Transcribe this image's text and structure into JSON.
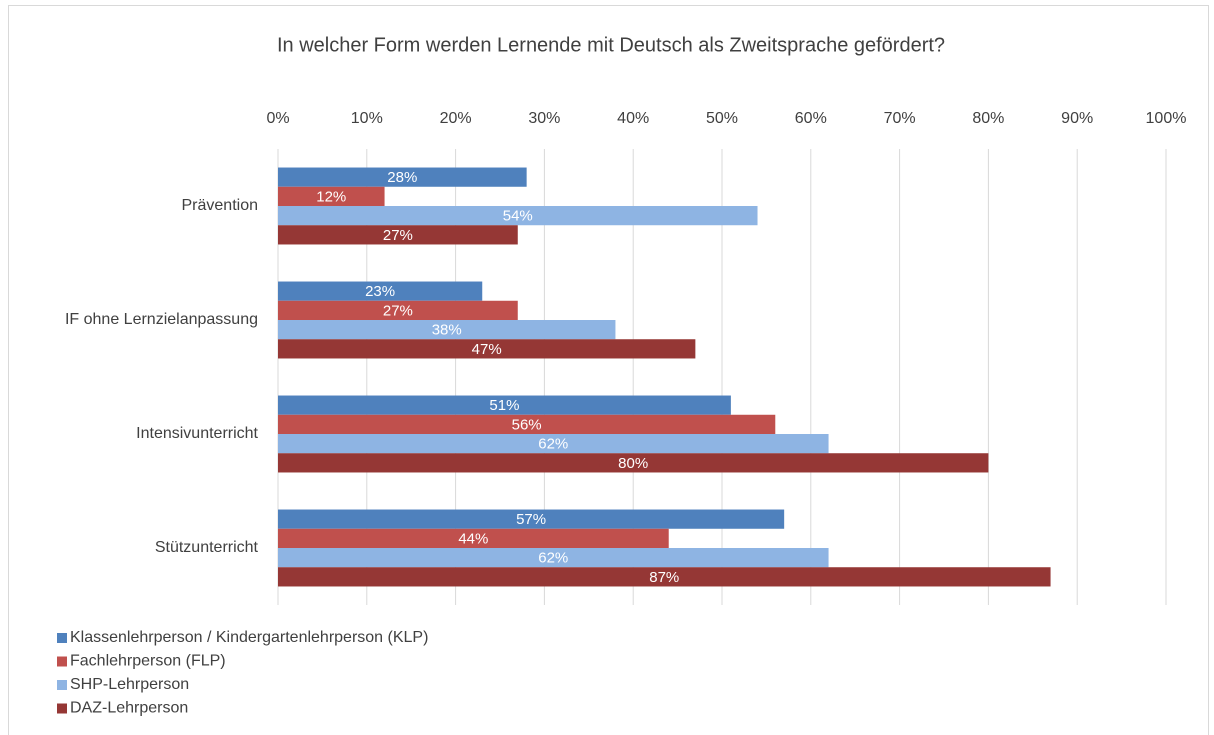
{
  "chart_data": {
    "type": "bar",
    "orientation": "horizontal",
    "title": "In welcher Form werden Lernende mit Deutsch als Zweitsprache gefördert?",
    "categories": [
      "Prävention",
      "IF ohne Lernzielanpassung",
      "Intensivunterricht",
      "Stützunterricht"
    ],
    "series": [
      {
        "name": "Klassenlehrperson / Kindergartenlehrperson (KLP)",
        "color": "#4f81bd",
        "values": [
          28,
          23,
          51,
          57
        ],
        "value_labels": [
          "28%",
          "23%",
          "51%",
          "57%"
        ]
      },
      {
        "name": "Fachlehrperson (FLP)",
        "color": "#c0504d",
        "values": [
          12,
          27,
          56,
          44
        ],
        "value_labels": [
          "12%",
          "27%",
          "56%",
          "44%"
        ]
      },
      {
        "name": "SHP-Lehrperson",
        "color": "#8eb4e3",
        "values": [
          54,
          38,
          62,
          62
        ],
        "value_labels": [
          "54%",
          "38%",
          "62%",
          "62%"
        ]
      },
      {
        "name": "DAZ-Lehrperson",
        "color": "#953735",
        "values": [
          27,
          47,
          80,
          87
        ],
        "value_labels": [
          "27%",
          "47%",
          "80%",
          "87%"
        ]
      }
    ],
    "xlim": [
      0,
      100
    ],
    "xticks": [
      {
        "value": 0,
        "label": "0%"
      },
      {
        "value": 10,
        "label": "10%"
      },
      {
        "value": 20,
        "label": "20%"
      },
      {
        "value": 30,
        "label": "30%"
      },
      {
        "value": 40,
        "label": "40%"
      },
      {
        "value": 50,
        "label": "50%"
      },
      {
        "value": 60,
        "label": "60%"
      },
      {
        "value": 70,
        "label": "70%"
      },
      {
        "value": 80,
        "label": "80%"
      },
      {
        "value": 90,
        "label": "90%"
      },
      {
        "value": 100,
        "label": "100%"
      }
    ],
    "grid": true,
    "legend": "bottom-left"
  }
}
